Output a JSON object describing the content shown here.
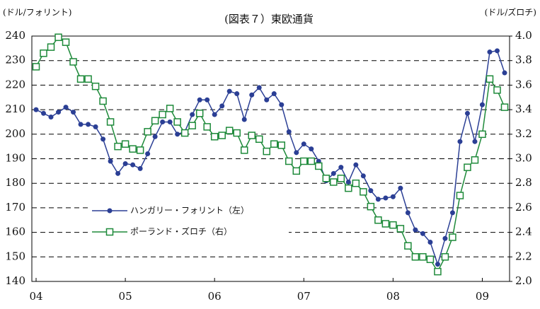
{
  "chart_data": {
    "type": "line",
    "title": "(図表７）東欧通貨",
    "y_label": "(ドル/フォリント)",
    "y2_label": "(ドル/ズロチ)",
    "categories": [
      "04",
      null,
      null,
      null,
      null,
      null,
      null,
      null,
      null,
      null,
      null,
      null,
      "05",
      null,
      null,
      null,
      null,
      null,
      null,
      null,
      null,
      null,
      null,
      null,
      "06",
      null,
      null,
      null,
      null,
      null,
      null,
      null,
      null,
      null,
      null,
      null,
      "07",
      null,
      null,
      null,
      null,
      null,
      null,
      null,
      null,
      null,
      null,
      null,
      "08",
      null,
      null,
      null,
      null,
      null,
      null,
      null,
      null,
      null,
      null,
      null,
      "09",
      null,
      null,
      null
    ],
    "ylim": [
      140,
      240
    ],
    "yticks": [
      140,
      150,
      160,
      170,
      180,
      190,
      200,
      210,
      220,
      230,
      240
    ],
    "y2lim": [
      2,
      4
    ],
    "y2ticks": [
      {
        "value": 2,
        "label": "2.0"
      },
      2.2,
      2.4,
      2.6,
      2.8,
      {
        "value": 3,
        "label": "3.0"
      },
      3.2,
      3.4,
      3.6,
      3.8,
      {
        "value": 4,
        "label": "4.0"
      }
    ],
    "grid": true,
    "legend": "lower left",
    "series": [
      {
        "name": "ハンガリー・フォリント（左）",
        "color": "#2b3f95",
        "marker": "circle",
        "values": [
          210,
          208.5,
          207,
          209,
          211,
          209,
          204,
          204,
          203,
          198,
          189,
          184,
          188,
          187.5,
          186,
          192,
          199,
          205,
          205,
          200,
          201,
          208,
          214,
          214,
          208,
          211.5,
          217.5,
          216.5,
          206,
          216,
          219,
          214,
          216.5,
          212,
          201,
          192.5,
          196,
          194,
          189,
          181,
          184,
          186.5,
          180.5,
          187.5,
          183,
          177,
          173.5,
          174,
          174.5,
          178,
          168,
          161,
          159.5,
          156,
          147,
          157.5,
          168,
          197,
          208.5,
          197,
          212,
          233.5,
          234,
          225
        ]
      },
      {
        "name": "ポーランド・ズロチ（右）",
        "color": "#1e8a3a",
        "marker": "square",
        "axis": "y2",
        "values": [
          3.75,
          3.86,
          3.91,
          3.99,
          3.95,
          3.79,
          3.65,
          3.65,
          3.59,
          3.47,
          3.3,
          3.1,
          3.12,
          3.08,
          3.07,
          3.22,
          3.31,
          3.36,
          3.41,
          3.3,
          3.21,
          3.27,
          3.37,
          3.26,
          3.18,
          3.19,
          3.23,
          3.21,
          3.07,
          3.19,
          3.16,
          3.06,
          3.12,
          3.11,
          2.98,
          2.9,
          2.98,
          2.98,
          2.94,
          2.84,
          2.81,
          2.84,
          2.76,
          2.8,
          2.73,
          2.61,
          2.5,
          2.47,
          2.46,
          2.43,
          2.29,
          2.2,
          2.2,
          2.18,
          2.08,
          2.2,
          2.36,
          2.7,
          2.93,
          2.99,
          3.2,
          3.65,
          3.56,
          3.42
        ]
      }
    ]
  }
}
